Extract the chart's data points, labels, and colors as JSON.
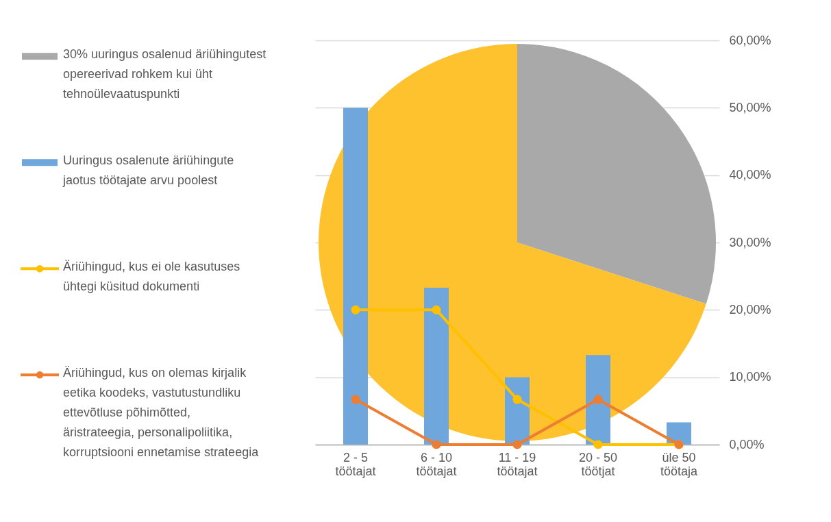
{
  "chart_data": [
    {
      "type": "pie",
      "categories": [
        "30% uuringus osalenud äriühingutest opereerivad rohkem kui üht tehnoülevaatuspunkti",
        null
      ],
      "values": [
        30,
        70
      ],
      "colors": [
        "#a9a9a9",
        "#fdc22e"
      ],
      "legend": "left"
    },
    {
      "type": "bar",
      "categories": [
        "2 - 5 töötajat",
        "6 - 10 töötajat",
        "11 - 19 töötajat",
        "20 - 50 töötjat",
        "üle 50 töötaja"
      ],
      "series": [
        {
          "type": "bar",
          "name": "Uuringus osalenute äriühingute jaotus töötajate arvu poolest",
          "color": "#6fa6dc",
          "values": [
            50,
            23.3,
            10,
            13.3,
            3.3
          ]
        },
        {
          "type": "line",
          "name": "Äriühingud, kus ei ole kasutuses ühtegi küsitud dokumenti",
          "color": "#ffc000",
          "values": [
            20,
            20,
            6.7,
            0,
            0
          ]
        },
        {
          "type": "line",
          "name": "Äriühingud, kus on olemas kirjalik eetika koodeks, vastutustundliku ettevõtluse põhimõtted, äristrateegia, personalipoliitika, korruptsiooni ennetamise strateegia",
          "color": "#ed7d31",
          "values": [
            6.7,
            0,
            0,
            6.7,
            0
          ]
        }
      ],
      "ylim": [
        0,
        60
      ],
      "yticks": [
        {
          "value": 0,
          "label": "0,00%"
        },
        {
          "value": 10,
          "label": "10,00%"
        },
        {
          "value": 20,
          "label": "20,00%"
        },
        {
          "value": 30,
          "label": "30,00%"
        },
        {
          "value": 40,
          "label": "40,00%"
        },
        {
          "value": 50,
          "label": "50,00%"
        },
        {
          "value": 60,
          "label": "60,00%"
        }
      ],
      "grid": "y",
      "legend": "left",
      "marker": "circle",
      "line_style": "solid"
    }
  ]
}
